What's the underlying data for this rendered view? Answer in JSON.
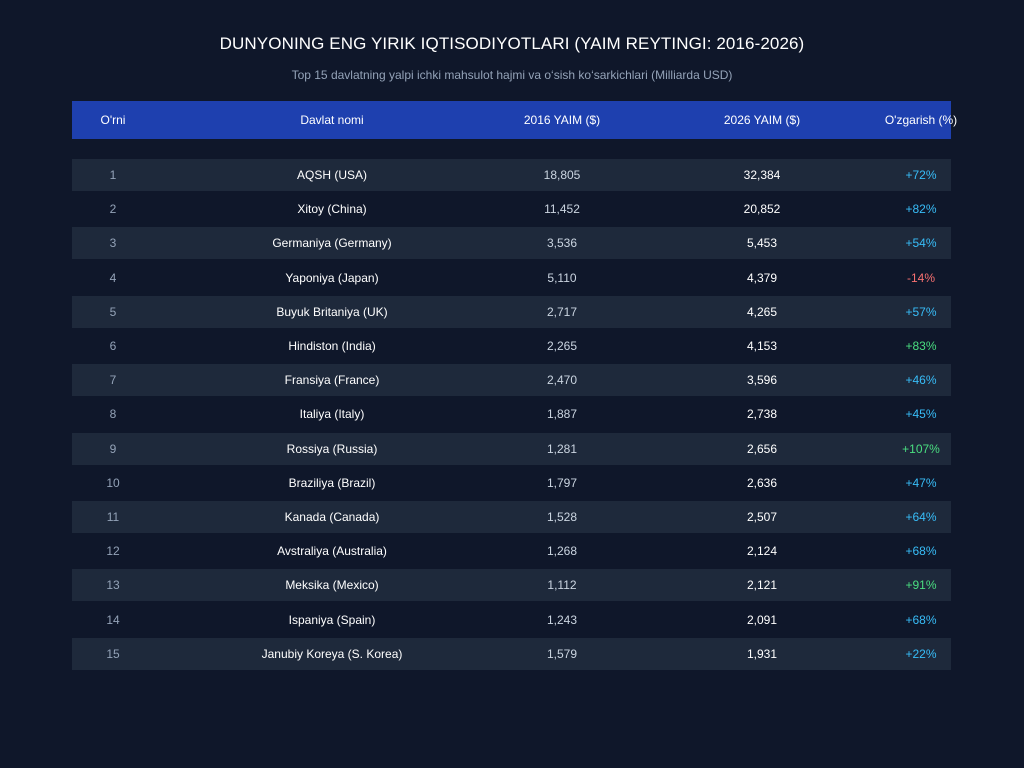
{
  "title": "DUNYONING ENG YIRIK IQTISODIYOTLARI (YAIM REYTINGI: 2016-2026)",
  "subtitle": "Top 15 davlatning yalpi ichki mahsulot hajmi va o‘sish ko‘sarkichlari (Milliarda USD)",
  "colors": {
    "background": "#0f172a",
    "header": "#1e40af",
    "row_alt": "#1e293b",
    "positive": "#38bdf8",
    "high_growth": "#4ade80",
    "negative": "#f87171"
  },
  "chart_data": {
    "type": "table",
    "columns": [
      "O'rni",
      "Davlat nomi",
      "2016 YAIM ($)",
      "2026 YAIM ($)",
      "O'zgarish (%)"
    ],
    "rows": [
      {
        "rank": "1",
        "name": "AQSH (USA)",
        "y2016": "18,805",
        "y2026": "32,384",
        "change": "+72%",
        "tone": "pos"
      },
      {
        "rank": "2",
        "name": "Xitoy (China)",
        "y2016": "11,452",
        "y2026": "20,852",
        "change": "+82%",
        "tone": "pos"
      },
      {
        "rank": "3",
        "name": "Germaniya (Germany)",
        "y2016": "3,536",
        "y2026": "5,453",
        "change": "+54%",
        "tone": "pos"
      },
      {
        "rank": "4",
        "name": "Yaponiya (Japan)",
        "y2016": "5,110",
        "y2026": "4,379",
        "change": "-14%",
        "tone": "neg"
      },
      {
        "rank": "5",
        "name": "Buyuk Britaniya (UK)",
        "y2016": "2,717",
        "y2026": "4,265",
        "change": "+57%",
        "tone": "pos"
      },
      {
        "rank": "6",
        "name": "Hindiston (India)",
        "y2016": "2,265",
        "y2026": "4,153",
        "change": "+83%",
        "tone": "high"
      },
      {
        "rank": "7",
        "name": "Fransiya (France)",
        "y2016": "2,470",
        "y2026": "3,596",
        "change": "+46%",
        "tone": "pos"
      },
      {
        "rank": "8",
        "name": "Italiya (Italy)",
        "y2016": "1,887",
        "y2026": "2,738",
        "change": "+45%",
        "tone": "pos"
      },
      {
        "rank": "9",
        "name": "Rossiya (Russia)",
        "y2016": "1,281",
        "y2026": "2,656",
        "change": "+107%",
        "tone": "high"
      },
      {
        "rank": "10",
        "name": "Braziliya (Brazil)",
        "y2016": "1,797",
        "y2026": "2,636",
        "change": "+47%",
        "tone": "pos"
      },
      {
        "rank": "11",
        "name": "Kanada (Canada)",
        "y2016": "1,528",
        "y2026": "2,507",
        "change": "+64%",
        "tone": "pos"
      },
      {
        "rank": "12",
        "name": "Avstraliya (Australia)",
        "y2016": "1,268",
        "y2026": "2,124",
        "change": "+68%",
        "tone": "pos"
      },
      {
        "rank": "13",
        "name": "Meksika (Mexico)",
        "y2016": "1,112",
        "y2026": "2,121",
        "change": "+91%",
        "tone": "high"
      },
      {
        "rank": "14",
        "name": "Ispaniya (Spain)",
        "y2016": "1,243",
        "y2026": "2,091",
        "change": "+68%",
        "tone": "pos"
      },
      {
        "rank": "15",
        "name": "Janubiy Koreya (S. Korea)",
        "y2016": "1,579",
        "y2026": "1,931",
        "change": "+22%",
        "tone": "pos"
      }
    ]
  }
}
